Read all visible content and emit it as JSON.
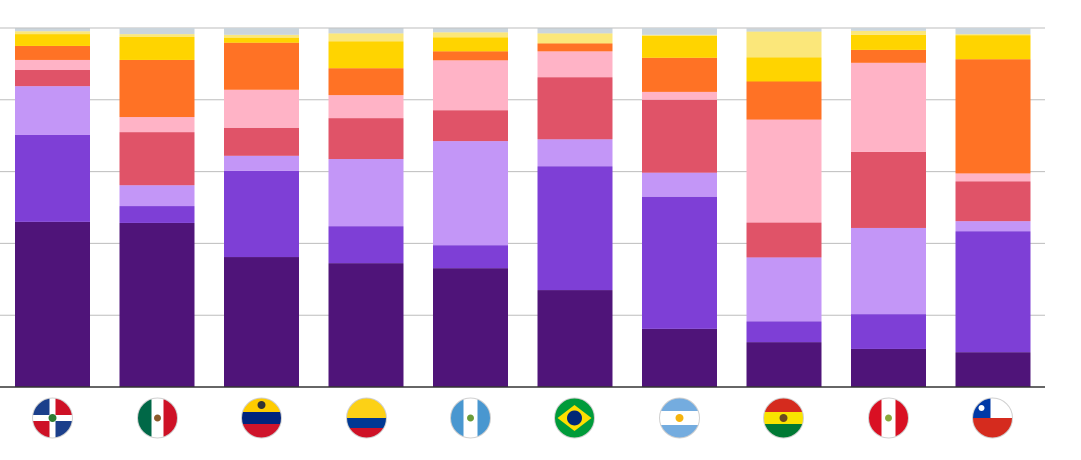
{
  "chart_data": {
    "type": "stacked_bar",
    "categories": [
      null,
      null,
      null,
      null,
      null,
      null,
      null,
      null,
      null,
      null
    ],
    "ylim": [
      0,
      100
    ],
    "yticks": [
      0,
      20,
      40,
      60,
      80,
      100
    ],
    "grid": true,
    "series": [
      {
        "color": "#4f1479",
        "values": [
          46,
          45.7,
          36.2,
          34.5,
          33.1,
          27,
          16.2,
          12.5,
          10.6,
          9.7
        ]
      },
      {
        "color": "#7e3fd6",
        "values": [
          24.2,
          4.7,
          24,
          10.3,
          6.4,
          34.5,
          36.8,
          5.8,
          9.7,
          33.7
        ]
      },
      {
        "color": "#c396f7",
        "values": [
          13.6,
          5.8,
          4.2,
          18.7,
          29,
          7.5,
          6.7,
          17.8,
          24,
          2.8
        ]
      },
      {
        "color": "#e05368",
        "values": [
          4.5,
          14.8,
          7.8,
          11.4,
          8.6,
          17.3,
          20.3,
          9.7,
          21.2,
          11.1
        ]
      },
      {
        "color": "#ffb3c6",
        "values": [
          2.8,
          4.2,
          10.6,
          6.4,
          13.9,
          7.2,
          2.2,
          28.7,
          24.8,
          2.2
        ]
      },
      {
        "color": "#ff7225",
        "values": [
          3.9,
          15.9,
          13.1,
          7.5,
          2.5,
          2.2,
          9.5,
          10.6,
          3.6,
          31.8
        ]
      },
      {
        "color": "#ffd400",
        "values": [
          3.3,
          6.4,
          1.4,
          7.5,
          3.9,
          0,
          6.1,
          6.7,
          4.2,
          6.7
        ]
      },
      {
        "color": "#fbe77a",
        "values": [
          0.8,
          0.8,
          0.8,
          2.2,
          1.4,
          2.8,
          0.3,
          7.2,
          1.1,
          0.3
        ]
      },
      {
        "color": "#cbd5dc",
        "values": [
          0.8,
          1.7,
          1.9,
          1.4,
          1.1,
          1.4,
          1.9,
          0.8,
          0.8,
          1.7
        ]
      }
    ]
  }
}
